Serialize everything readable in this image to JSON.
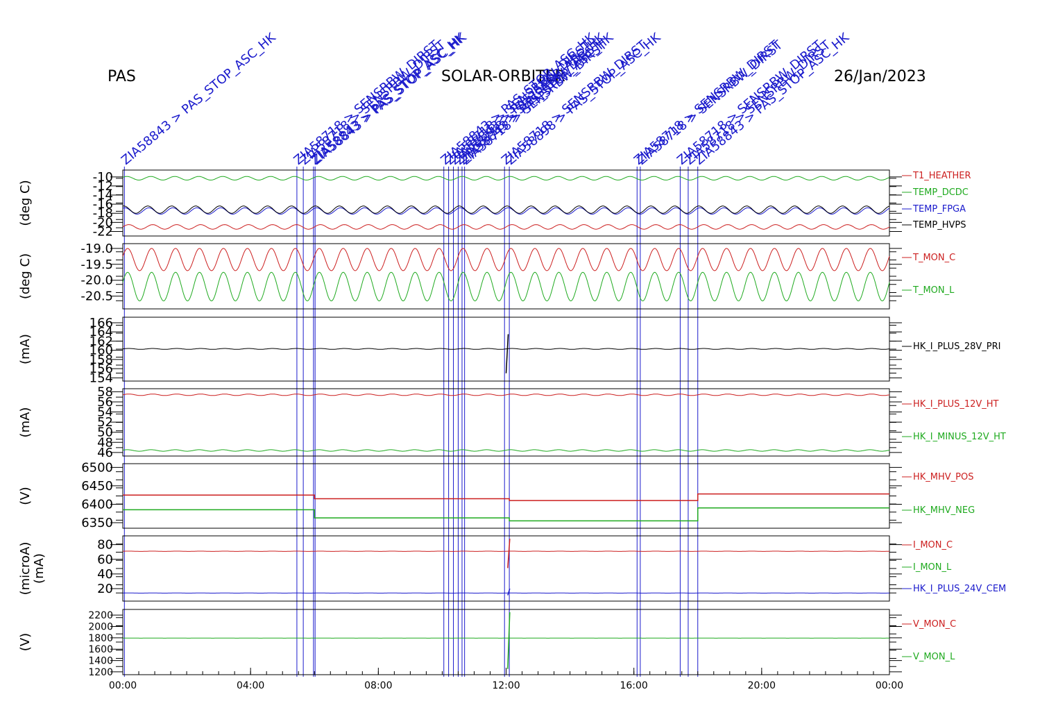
{
  "header": {
    "left": "PAS",
    "center": "SOLAR-ORBITER",
    "right": "26/Jan/2023"
  },
  "colors": {
    "red": "#cc1f1f",
    "green": "#1faa1f",
    "blue": "#1a1acc",
    "black": "#000000"
  },
  "chart_data": {
    "type": "line",
    "x_axis": {
      "unit": "hours",
      "range": [
        0,
        24
      ],
      "ticks": [
        0,
        4,
        8,
        12,
        16,
        20,
        24
      ],
      "tick_labels": [
        "00:00",
        "04:00",
        "08:00",
        "12:00",
        "16:00",
        "20:00",
        "00:00"
      ]
    },
    "telecommands": [
      {
        "t": 0.05,
        "label": "ZIA58843 > PAS_STOP_ASC_HK"
      },
      {
        "t": 5.45,
        "label": "ZIA58718 > SENSRBW_DIRST"
      },
      {
        "t": 5.65,
        "label": "ZIA58718 > SENSRBW_DIRST"
      },
      {
        "t": 5.97,
        "label": "ZIA58843 > PAS_STOP_ASC_HK"
      },
      {
        "t": 6.02,
        "label": "ZIA58843 > PAS_STOP_ASC_HK"
      },
      {
        "t": 10.05,
        "label": "ZIA58843 > PAS_STOP_ASC_HK"
      },
      {
        "t": 10.2,
        "label": "ZIA58718 > SENSRBW_DIRST"
      },
      {
        "t": 10.35,
        "label": "ZIA58843 > PAS_STOP_ASC_HK"
      },
      {
        "t": 10.5,
        "label": "ZIA58718 > SENSRBW_DIRST"
      },
      {
        "t": 10.62,
        "label": "ZIA58843 > PAS_STOP_ASC_HK"
      },
      {
        "t": 10.7,
        "label": "ZIA58718 > SENSRBW_DIRST"
      },
      {
        "t": 11.95,
        "label": "ZIA58718 > SENSRBW_DIRST"
      },
      {
        "t": 12.1,
        "label": "ZIA58898 > PAS_STOP_ASC_HK"
      },
      {
        "t": 16.1,
        "label": "ZIA58718 > SENSRBW_DIRST"
      },
      {
        "t": 16.2,
        "label": "ZIA58718 > SENSRBW_DIRST"
      },
      {
        "t": 17.45,
        "label": "ZIA58718 > SENSRBW_DIRST"
      },
      {
        "t": 17.7,
        "label": "ZIA58718 > SENSRBW_DIRST"
      },
      {
        "t": 18.0,
        "label": "ZIA58843 > PAS_STOP_ASC_HK"
      }
    ],
    "panels": [
      {
        "ylabel": "(deg C)",
        "ylim": [
          -23,
          -8.5
        ],
        "yticks": [
          -10,
          -12,
          -14,
          -16,
          -18,
          -20,
          -22
        ],
        "tick_labels": [
          "-10",
          "-12",
          "-14",
          "-16",
          "-18",
          "-20",
          "-22"
        ],
        "tick_class": "tick",
        "series": [
          {
            "name": "T1_HEATHER",
            "color": "red",
            "base": -21.0,
            "amp": 0.5,
            "period": 0.75,
            "phase": 0.0
          },
          {
            "name": "TEMP_DCDC",
            "color": "green",
            "base": -10.3,
            "amp": 0.4,
            "period": 0.75,
            "phase": 0.5
          },
          {
            "name": "TEMP_FPGA",
            "color": "blue",
            "base": -17.5,
            "amp": 0.7,
            "period": 0.75,
            "phase": 1.0
          },
          {
            "name": "TEMP_HVPS",
            "color": "black",
            "base": -17.2,
            "amp": 0.8,
            "period": 0.75,
            "phase": 1.3
          }
        ]
      },
      {
        "ylabel": "(deg C)",
        "ylim": [
          -20.9,
          -18.85
        ],
        "yticks": [
          -19.0,
          -19.5,
          -20.0,
          -20.5
        ],
        "tick_labels": [
          "-19.0",
          "-19.5",
          "-20.0",
          "-20.5"
        ],
        "tick_class": "tick",
        "series": [
          {
            "name": "T_MON_C",
            "color": "red",
            "base": -19.35,
            "amp": 0.35,
            "period": 0.75,
            "phase": 0.3
          },
          {
            "name": "T_MON_L",
            "color": "green",
            "base": -20.2,
            "amp": 0.45,
            "period": 0.75,
            "phase": 0.3
          }
        ]
      },
      {
        "ylabel": "(mA)",
        "ylim": [
          153.3,
          167.2
        ],
        "yticks": [
          154,
          156,
          158,
          160,
          162,
          164,
          166
        ],
        "tick_labels": [
          "154",
          "156",
          "158",
          "160",
          "162",
          "164",
          "166"
        ],
        "tick_class": "tick",
        "series": [
          {
            "name": "HK_I_PLUS_28V_PRI",
            "color": "black",
            "base": 160.3,
            "amp": 0.1,
            "period": 0.75,
            "phase": 0.0,
            "spike": [
              12.0,
              155.0,
              163.5
            ]
          }
        ]
      },
      {
        "ylabel": "(mA)",
        "ylim": [
          45.3,
          58.6
        ],
        "yticks": [
          46,
          48,
          50,
          52,
          54,
          56,
          58
        ],
        "tick_labels": [
          "46",
          "48",
          "50",
          "52",
          "54",
          "56",
          "58"
        ],
        "tick_class": "tick",
        "series": [
          {
            "name": "HK_I_PLUS_12V_HT",
            "color": "red",
            "base": 57.4,
            "amp": 0.15,
            "period": 0.75,
            "phase": 0.0
          },
          {
            "name": "HK_I_MINUS_12V_HT",
            "color": "green",
            "base": 46.4,
            "amp": 0.15,
            "period": 0.75,
            "phase": 0.4
          }
        ]
      },
      {
        "ylabel": "(V)",
        "ylim": [
          6335,
          6510
        ],
        "yticks": [
          6350,
          6400,
          6450,
          6500
        ],
        "tick_labels": [
          "6350",
          "6400",
          "6450",
          "6500"
        ],
        "tick_class": "tick",
        "series": [
          {
            "name": "HK_MHV_POS",
            "color": "red",
            "steps": [
              [
                0,
                6.0,
                6425
              ],
              [
                6.0,
                12.1,
                6415
              ],
              [
                12.1,
                18.0,
                6410
              ],
              [
                18.0,
                24,
                6428
              ]
            ]
          },
          {
            "name": "HK_MHV_NEG",
            "color": "green",
            "steps": [
              [
                0,
                6.0,
                6385
              ],
              [
                6.0,
                12.1,
                6363
              ],
              [
                12.1,
                18.0,
                6355
              ],
              [
                18.0,
                24,
                6390
              ]
            ]
          }
        ]
      },
      {
        "ylabel": "(microA)",
        "ylabel2": "(mA)",
        "ylim": [
          3,
          92
        ],
        "yticks": [
          20,
          40,
          60,
          80
        ],
        "tick_labels": [
          "20",
          "40",
          "60",
          "80"
        ],
        "tick_class": "tick",
        "series": [
          {
            "name": "I_MON_C",
            "color": "red",
            "base": 71,
            "amp": 0.2,
            "period": 0.75,
            "phase": 0.0,
            "spike": [
              12.05,
              48,
              88
            ]
          },
          {
            "name": "I_MON_L",
            "color": "green",
            "base": null
          },
          {
            "name": "HK_I_PLUS_24V_CEM",
            "color": "blue",
            "base": 14,
            "amp": 0.1,
            "period": 0.75,
            "phase": 0.0,
            "spike": [
              12.05,
              11,
              20
            ]
          }
        ]
      },
      {
        "ylabel": "(V)",
        "ylim": [
          1150,
          2300
        ],
        "yticks": [
          1200,
          1400,
          1600,
          1800,
          2000,
          2200
        ],
        "tick_labels": [
          "1200",
          "1400",
          "1600",
          "1800",
          "2000",
          "2200"
        ],
        "tick_class": "tick-sm",
        "series": [
          {
            "name": "V_MON_C",
            "color": "red",
            "base": null
          },
          {
            "name": "V_MON_L",
            "color": "green",
            "base": 1795,
            "amp": 1,
            "period": 0.75,
            "phase": 0.0,
            "spike": [
              12.05,
              1250,
              2250
            ]
          }
        ]
      }
    ]
  }
}
